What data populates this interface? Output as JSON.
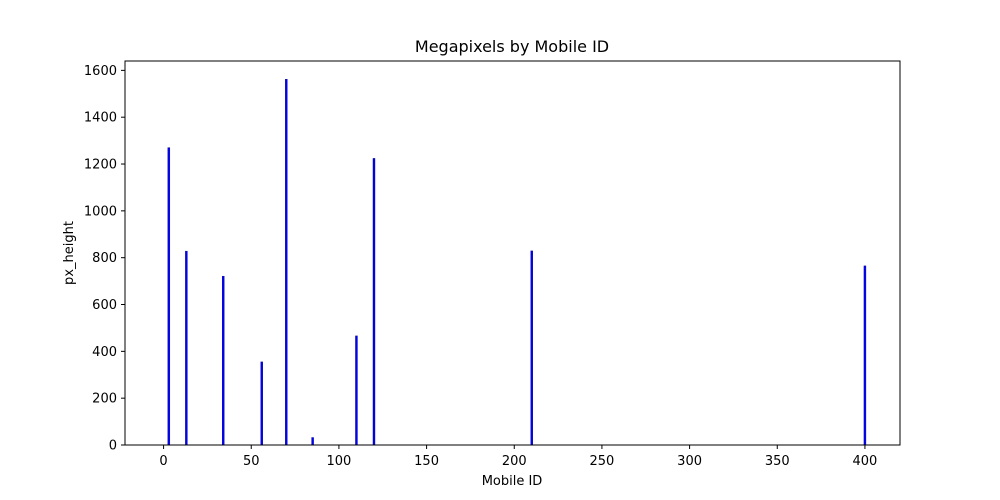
{
  "chart_data": {
    "type": "bar",
    "title": "Megapixels by Mobile ID",
    "xlabel": "Mobile ID",
    "ylabel": "px_height",
    "xlim": [
      -22,
      420
    ],
    "ylim": [
      0,
      1640
    ],
    "xticks": [
      0,
      50,
      100,
      150,
      200,
      250,
      300,
      350,
      400
    ],
    "yticks": [
      0,
      200,
      400,
      600,
      800,
      1000,
      1200,
      1400,
      1600
    ],
    "grid": false,
    "bar_color": "#0000ff",
    "bar_edge_color": "#000080",
    "points": [
      {
        "x": 3,
        "y": 1270
      },
      {
        "x": 13,
        "y": 828
      },
      {
        "x": 34,
        "y": 721
      },
      {
        "x": 56,
        "y": 355
      },
      {
        "x": 70,
        "y": 1562
      },
      {
        "x": 85,
        "y": 32
      },
      {
        "x": 110,
        "y": 466
      },
      {
        "x": 120,
        "y": 1224
      },
      {
        "x": 210,
        "y": 829
      },
      {
        "x": 400,
        "y": 765
      }
    ]
  }
}
